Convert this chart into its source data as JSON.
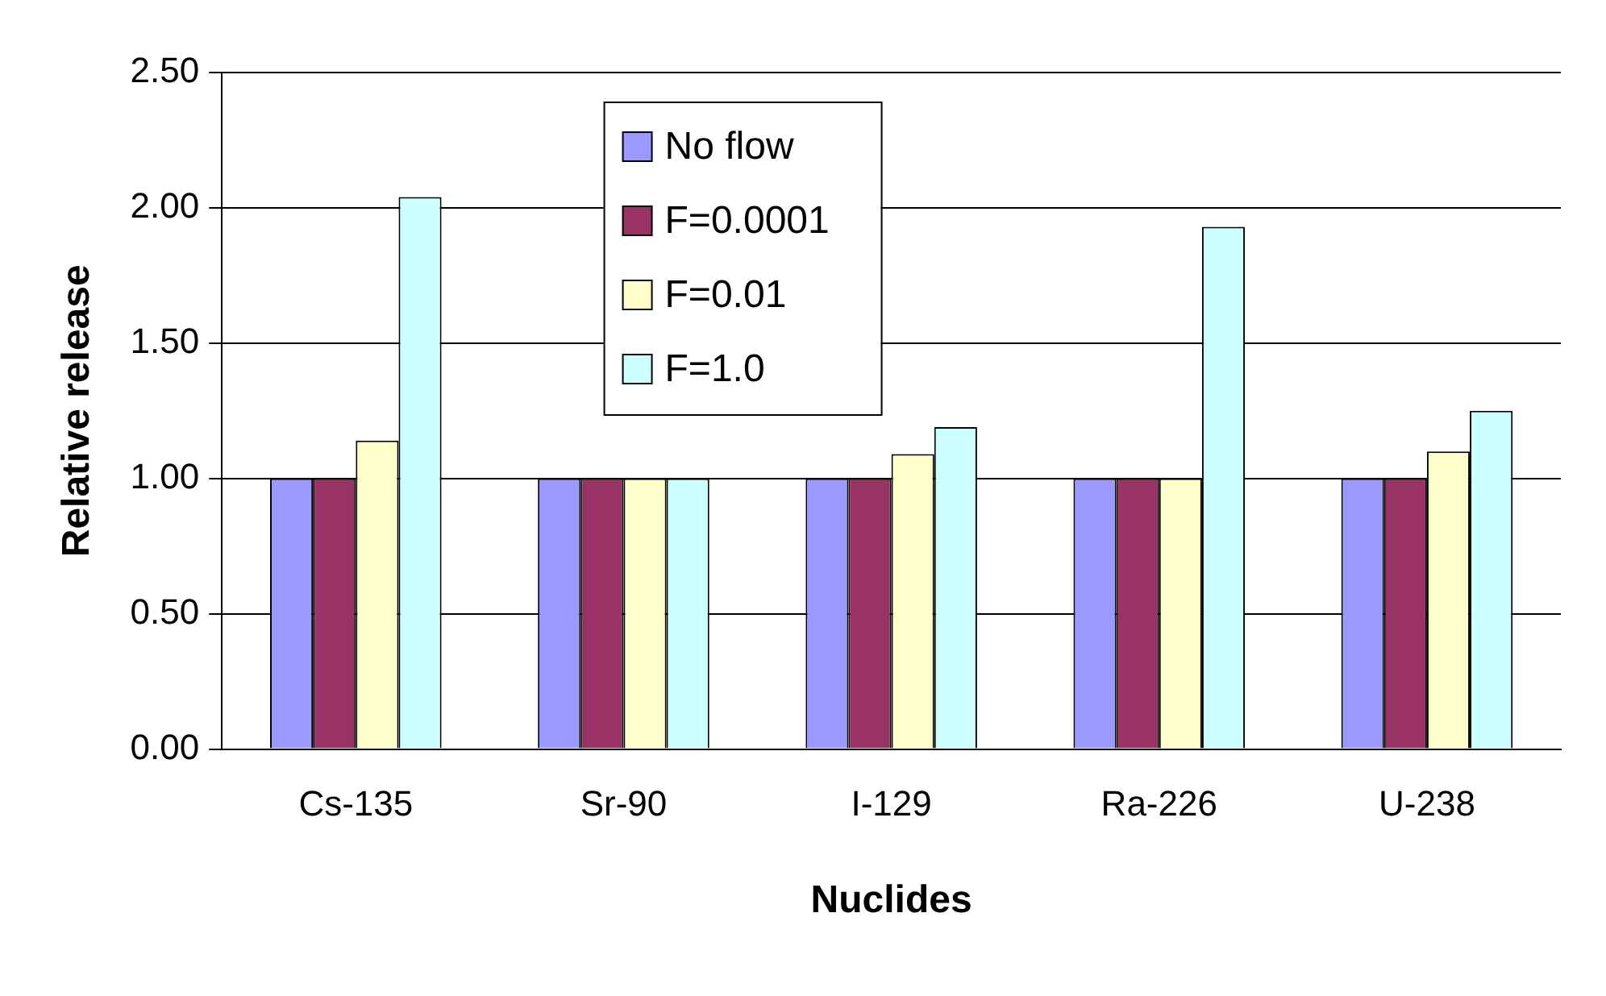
{
  "chart_data": {
    "type": "bar",
    "xlabel": "Nuclides",
    "ylabel": "Relative release",
    "categories": [
      "Cs-135",
      "Sr-90",
      "I-129",
      "Ra-226",
      "U-238"
    ],
    "series": [
      {
        "name": "No flow",
        "color": "#9999ff",
        "values": [
          1.0,
          1.0,
          1.0,
          1.0,
          1.0
        ]
      },
      {
        "name": "F=0.0001",
        "color": "#993366",
        "values": [
          1.0,
          1.0,
          1.0,
          1.0,
          1.0
        ]
      },
      {
        "name": "F=0.01",
        "color": "#ffffcc",
        "values": [
          1.14,
          1.0,
          1.09,
          1.0,
          1.1
        ]
      },
      {
        "name": "F=1.0",
        "color": "#ccffff",
        "values": [
          2.04,
          1.0,
          1.19,
          1.93,
          1.25
        ]
      }
    ],
    "ylim": [
      0,
      2.5
    ],
    "yticks": [
      {
        "value": 0,
        "label": "0.00"
      },
      {
        "value": 0.5,
        "label": "0.50"
      },
      {
        "value": 1,
        "label": "1.00"
      },
      {
        "value": 1.5,
        "label": "1.50"
      },
      {
        "value": 2,
        "label": "2.00"
      },
      {
        "value": 2.5,
        "label": "2.50"
      }
    ],
    "grid": "y",
    "legend": "top"
  }
}
